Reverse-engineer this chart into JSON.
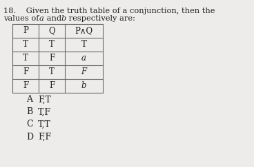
{
  "title_line1": "18.    Given the truth table of a conjunction, then the",
  "title_line2": "values of α and ᵇ respectively are:",
  "title_line2_plain": "values of a and b respectively are:",
  "table_headers": [
    "P",
    "Q",
    "P∧Q"
  ],
  "table_rows": [
    [
      "T",
      "T",
      "T",
      false
    ],
    [
      "T",
      "F",
      "a",
      true
    ],
    [
      "F",
      "T",
      "F",
      true
    ],
    [
      "F",
      "F",
      "b",
      true
    ]
  ],
  "options": [
    [
      "A",
      "F,T"
    ],
    [
      "B",
      "T,F"
    ],
    [
      "C",
      "T,T"
    ],
    [
      "D",
      "F,F"
    ]
  ],
  "bg_color": "#edecea",
  "text_color": "#222222",
  "font_size_title": 8.2,
  "font_size_table": 8.5,
  "font_size_options": 9.0
}
